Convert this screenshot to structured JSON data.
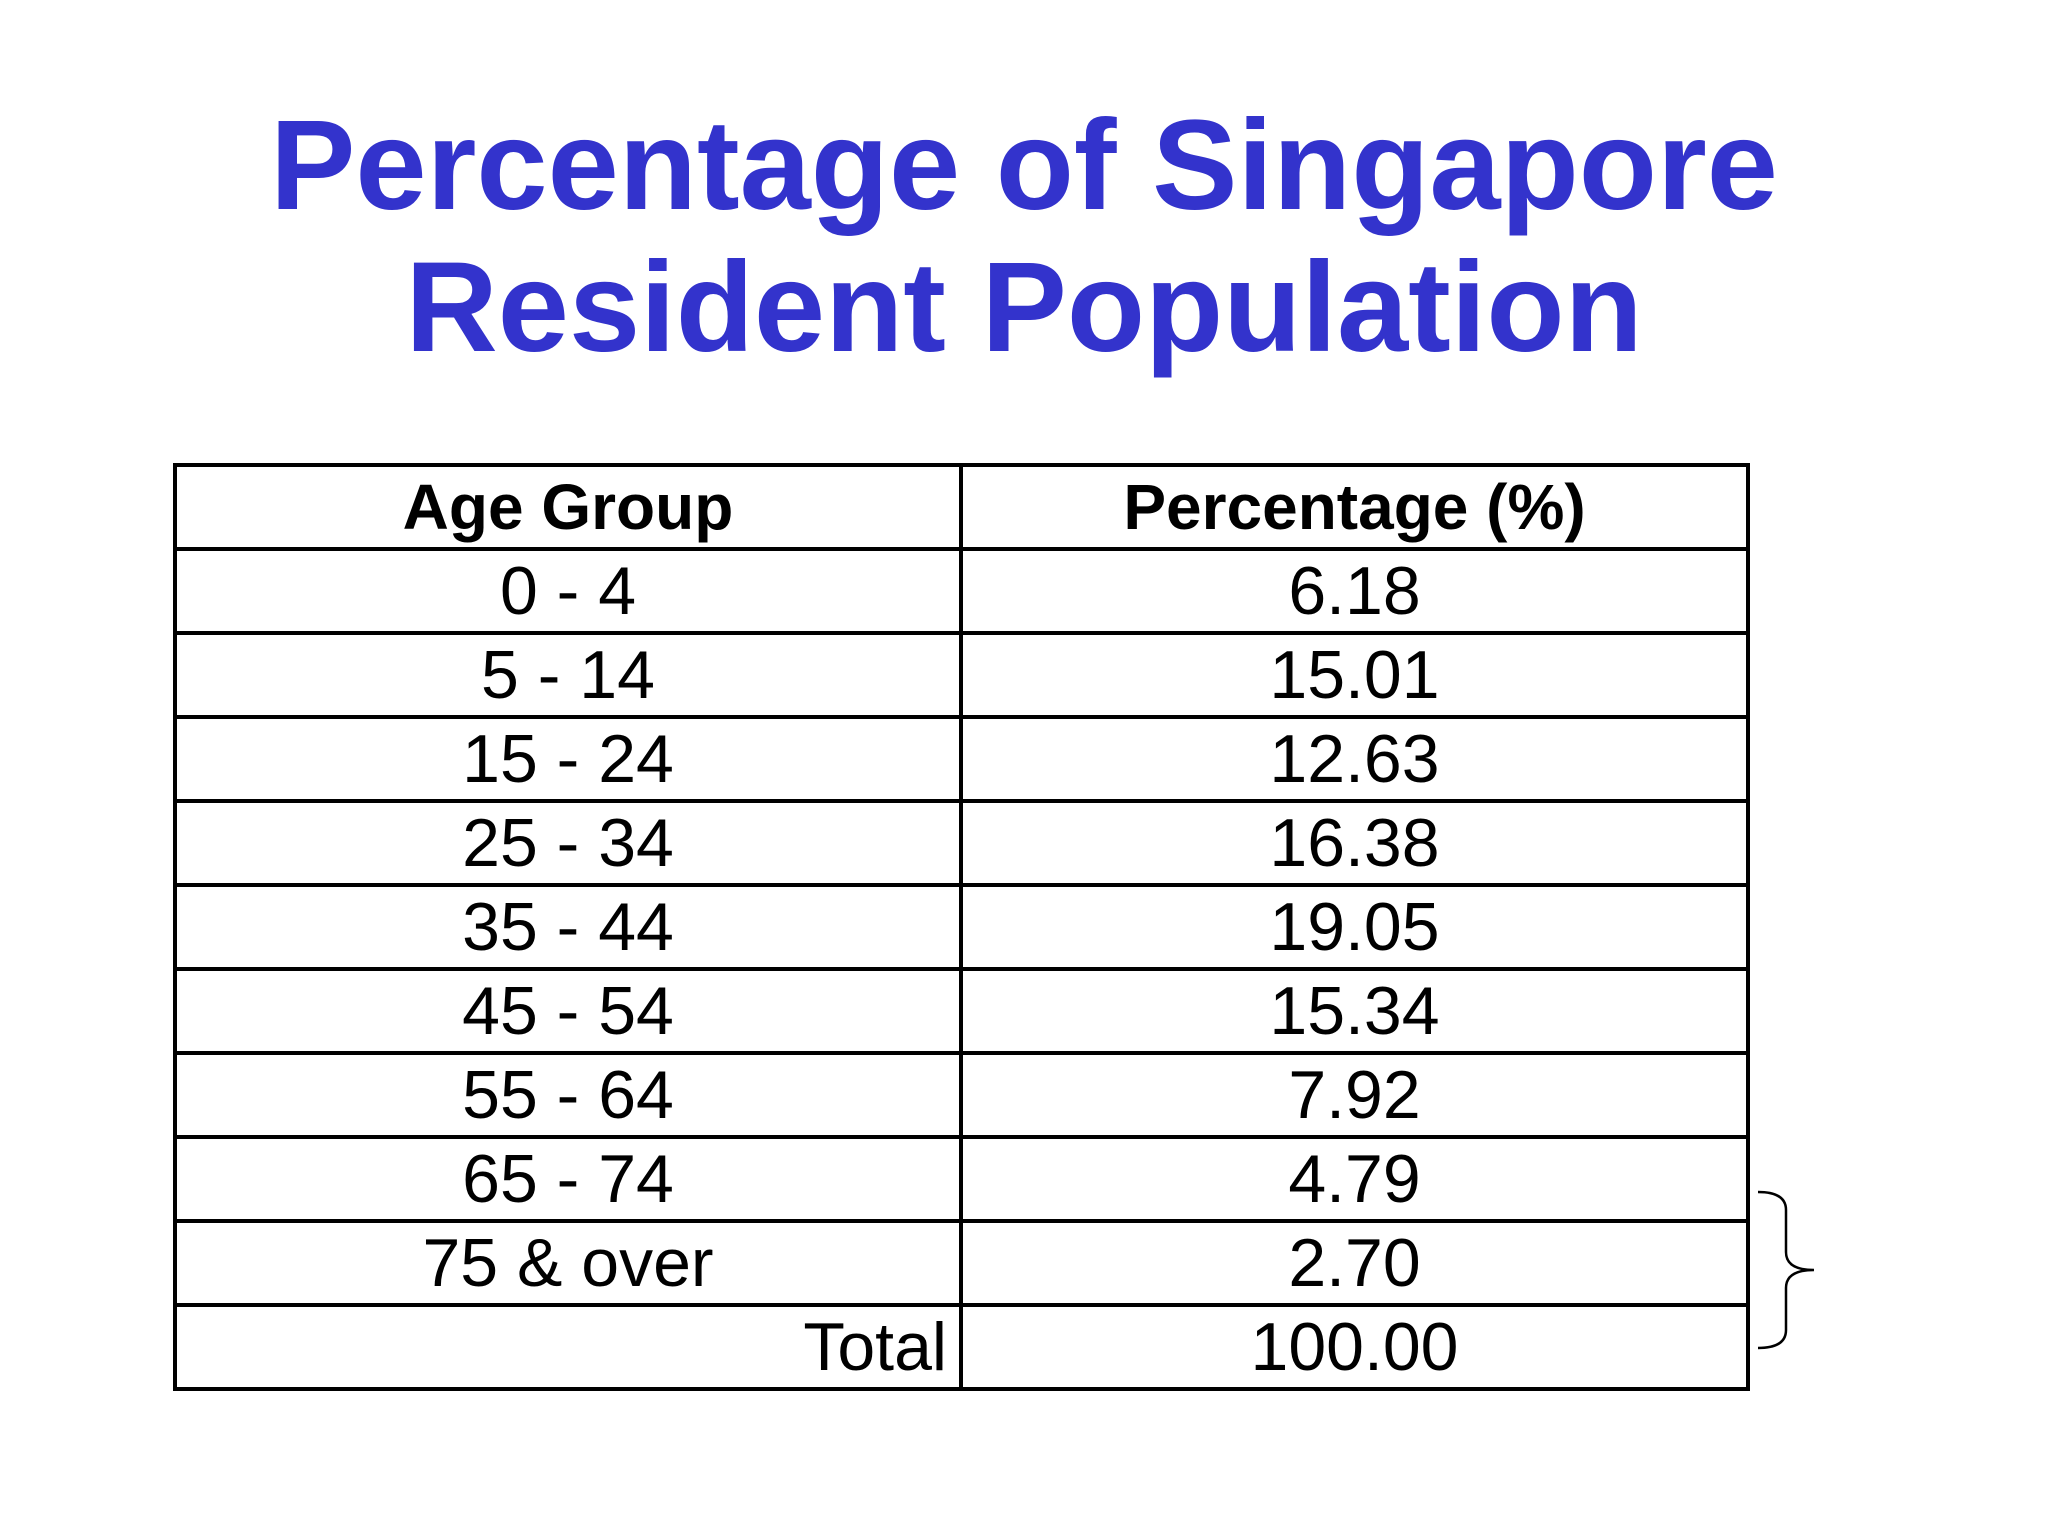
{
  "title": {
    "line1": "Percentage of Singapore",
    "line2": "Resident Population"
  },
  "table": {
    "headers": [
      "Age Group",
      "Percentage (%)"
    ],
    "rows": [
      {
        "age": "0 - 4",
        "pct": "6.18"
      },
      {
        "age": "5 - 14",
        "pct": "15.01"
      },
      {
        "age": "15 - 24",
        "pct": "12.63"
      },
      {
        "age": "25 - 34",
        "pct": "16.38"
      },
      {
        "age": "35 - 44",
        "pct": "19.05"
      },
      {
        "age": "45 - 54",
        "pct": "15.34"
      },
      {
        "age": "55 - 64",
        "pct": "7.92"
      },
      {
        "age": "65 - 74",
        "pct": "4.79"
      },
      {
        "age": "75 & over",
        "pct": "2.70"
      }
    ],
    "total": {
      "label": "Total",
      "value": "100.00"
    }
  },
  "colors": {
    "title": "#3333cc",
    "text": "#000000",
    "border": "#000000",
    "background": "#ffffff"
  }
}
